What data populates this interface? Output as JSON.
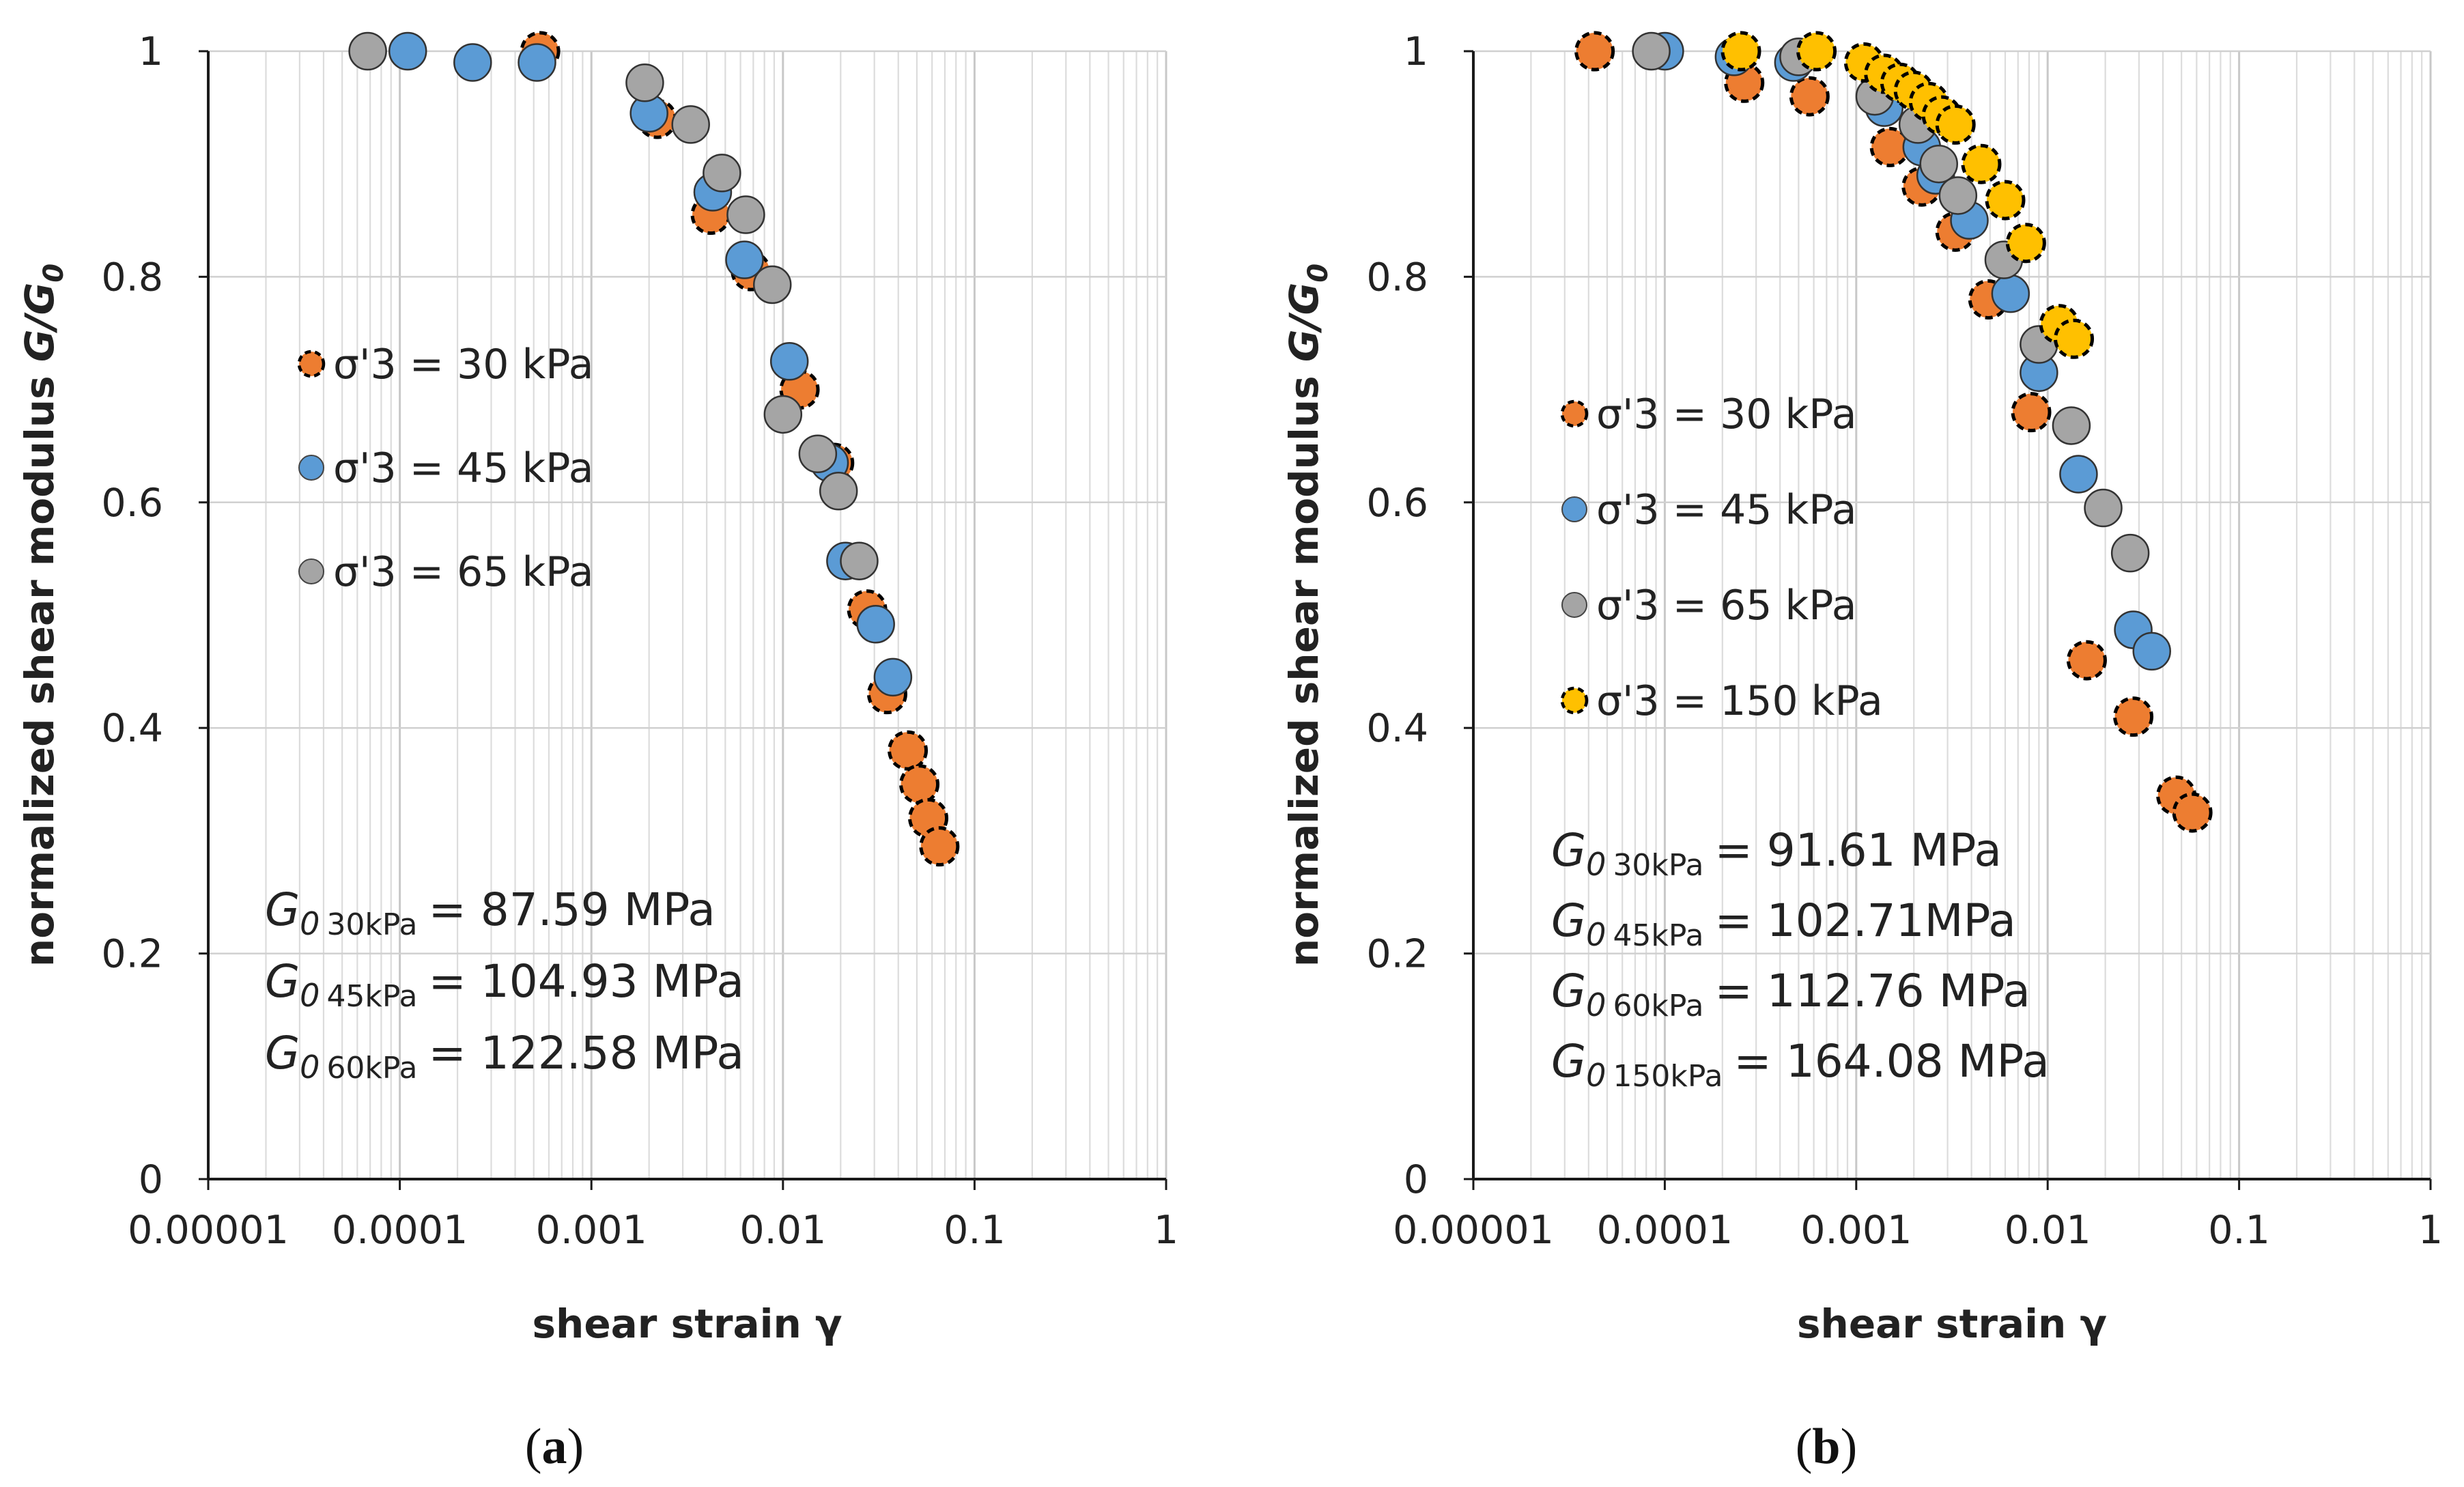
{
  "chart_data": [
    {
      "type": "scatter",
      "panel_label": "a",
      "xscale": "log",
      "xlim": [
        1e-05,
        1
      ],
      "ylim": [
        0,
        1
      ],
      "xlabel": "shear strain γ",
      "ylabel": "normalized shear modulus G/G0",
      "x_tick_labels": [
        "0.00001",
        "0.0001",
        "0.001",
        "0.01",
        "0.1",
        "1"
      ],
      "y_tick_labels": [
        "0",
        "0.2",
        "0.4",
        "0.6",
        "0.8",
        "1"
      ],
      "legend_position": "center-left",
      "series": [
        {
          "name": "σ'3 = 30 kPa",
          "color": "#ED7D31",
          "dashed": true,
          "points": [
            [
              0.00054,
              1.0
            ],
            [
              0.0022,
              0.94
            ],
            [
              0.0042,
              0.855
            ],
            [
              0.0068,
              0.805
            ],
            [
              0.0122,
              0.7
            ],
            [
              0.0185,
              0.635
            ],
            [
              0.0275,
              0.505
            ],
            [
              0.035,
              0.43
            ],
            [
              0.0448,
              0.38
            ],
            [
              0.0515,
              0.35
            ],
            [
              0.0573,
              0.32
            ],
            [
              0.0655,
              0.295
            ]
          ]
        },
        {
          "name": "σ'3 = 45 kPa",
          "color": "#5B9BD5",
          "dashed": false,
          "points": [
            [
              0.00011,
              1.0
            ],
            [
              0.00024,
              0.99
            ],
            [
              0.00052,
              0.99
            ],
            [
              0.002,
              0.945
            ],
            [
              0.0043,
              0.875
            ],
            [
              0.0063,
              0.815
            ],
            [
              0.0108,
              0.725
            ],
            [
              0.0175,
              0.635
            ],
            [
              0.0212,
              0.548
            ],
            [
              0.0305,
              0.492
            ],
            [
              0.0375,
              0.445
            ]
          ]
        },
        {
          "name": "σ'3 = 65 kPa",
          "color": "#A5A5A5",
          "dashed": false,
          "points": [
            [
              6.8e-05,
              1.0
            ],
            [
              0.0019,
              0.972
            ],
            [
              0.0033,
              0.935
            ],
            [
              0.0048,
              0.892
            ],
            [
              0.0064,
              0.855
            ],
            [
              0.0088,
              0.793
            ],
            [
              0.01,
              0.678
            ],
            [
              0.0152,
              0.643
            ],
            [
              0.0195,
              0.61
            ],
            [
              0.025,
              0.548
            ]
          ]
        }
      ],
      "annotations": [
        {
          "symbol": "G",
          "sub0": "0",
          "subscript": "30kPa",
          "value": "= 87.59 MPa"
        },
        {
          "symbol": "G",
          "sub0": "0",
          "subscript": "45kPa",
          "value": "= 104.93 MPa"
        },
        {
          "symbol": "G",
          "sub0": "0",
          "subscript": "60kPa",
          "value": "= 122.58 MPa"
        }
      ]
    },
    {
      "type": "scatter",
      "panel_label": "b",
      "xscale": "log",
      "xlim": [
        1e-05,
        1
      ],
      "ylim": [
        0,
        1
      ],
      "xlabel": "shear strain γ",
      "ylabel": "normalized shear modulus G/G0",
      "x_tick_labels": [
        "0.00001",
        "0.0001",
        "0.001",
        "0.01",
        "0.1",
        "1"
      ],
      "y_tick_labels": [
        "0",
        "0.2",
        "0.4",
        "0.6",
        "0.8",
        "1"
      ],
      "legend_position": "center-left",
      "series": [
        {
          "name": "σ'3 = 30 kPa",
          "color": "#ED7D31",
          "dashed": true,
          "points": [
            [
              4.3e-05,
              1.0
            ],
            [
              0.00026,
              0.972
            ],
            [
              0.00057,
              0.96
            ],
            [
              0.0015,
              0.915
            ],
            [
              0.0022,
              0.88
            ],
            [
              0.0033,
              0.84
            ],
            [
              0.0049,
              0.78
            ],
            [
              0.0082,
              0.68
            ],
            [
              0.016,
              0.46
            ],
            [
              0.028,
              0.41
            ],
            [
              0.047,
              0.34
            ],
            [
              0.057,
              0.325
            ]
          ]
        },
        {
          "name": "σ'3 = 45 kPa",
          "color": "#5B9BD5",
          "dashed": false,
          "points": [
            [
              0.0001,
              1.0
            ],
            [
              0.00023,
              0.995
            ],
            [
              0.00047,
              0.99
            ],
            [
              0.0014,
              0.95
            ],
            [
              0.0022,
              0.915
            ],
            [
              0.0026,
              0.89
            ],
            [
              0.0039,
              0.85
            ],
            [
              0.0064,
              0.785
            ],
            [
              0.009,
              0.715
            ],
            [
              0.0145,
              0.625
            ],
            [
              0.028,
              0.487
            ],
            [
              0.035,
              0.468
            ]
          ]
        },
        {
          "name": "σ'3 = 65 kPa",
          "color": "#A5A5A5",
          "dashed": false,
          "points": [
            [
              8.5e-05,
              1.0
            ],
            [
              0.0005,
              0.995
            ],
            [
              0.00125,
              0.96
            ],
            [
              0.0021,
              0.935
            ],
            [
              0.0027,
              0.9
            ],
            [
              0.0034,
              0.872
            ],
            [
              0.0059,
              0.815
            ],
            [
              0.009,
              0.74
            ],
            [
              0.0133,
              0.668
            ],
            [
              0.0195,
              0.595
            ],
            [
              0.027,
              0.555
            ]
          ]
        },
        {
          "name": "σ'3 = 150 kPa",
          "color": "#FFC000",
          "dashed": true,
          "points": [
            [
              0.00025,
              1.0
            ],
            [
              0.00062,
              1.0
            ],
            [
              0.0011,
              0.99
            ],
            [
              0.0014,
              0.98
            ],
            [
              0.0017,
              0.972
            ],
            [
              0.002,
              0.965
            ],
            [
              0.0024,
              0.955
            ],
            [
              0.0028,
              0.943
            ],
            [
              0.0033,
              0.935
            ],
            [
              0.0045,
              0.9
            ],
            [
              0.006,
              0.868
            ],
            [
              0.0077,
              0.83
            ],
            [
              0.0115,
              0.758
            ],
            [
              0.0137,
              0.745
            ]
          ]
        }
      ],
      "annotations": [
        {
          "symbol": "G",
          "sub0": "0",
          "subscript": "30kPa",
          "value": "= 91.61 MPa"
        },
        {
          "symbol": "G",
          "sub0": "0",
          "subscript": "45kPa",
          "value": "= 102.71MPa"
        },
        {
          "symbol": "G",
          "sub0": "0",
          "subscript": "60kPa",
          "value": "= 112.76 MPa"
        },
        {
          "symbol": "G",
          "sub0": "0",
          "subscript": "150kPa",
          "value": "= 164.08 MPa"
        }
      ]
    }
  ]
}
